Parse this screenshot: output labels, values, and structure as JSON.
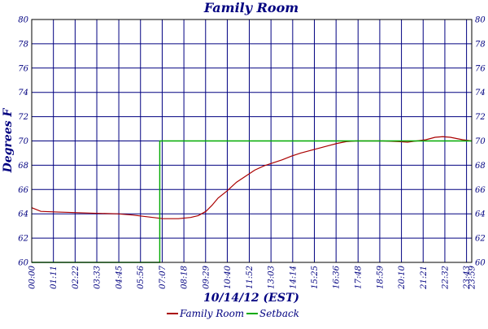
{
  "chart_data": {
    "type": "line",
    "title": "Family Room",
    "xlabel": "10/14/12 (EST)",
    "ylabel": "Degrees F",
    "ylim": [
      60,
      80
    ],
    "yticks": [
      60,
      62,
      64,
      66,
      68,
      70,
      72,
      74,
      76,
      78,
      80
    ],
    "xlim": [
      0,
      1440
    ],
    "xticks": [
      {
        "t": 0,
        "label": "00:00"
      },
      {
        "t": 71,
        "label": "01:11"
      },
      {
        "t": 142,
        "label": "02:22"
      },
      {
        "t": 213,
        "label": "03:33"
      },
      {
        "t": 285,
        "label": "04:45"
      },
      {
        "t": 356,
        "label": "05:56"
      },
      {
        "t": 427,
        "label": "07:07"
      },
      {
        "t": 498,
        "label": "08:18"
      },
      {
        "t": 569,
        "label": "09:29"
      },
      {
        "t": 640,
        "label": "10:40"
      },
      {
        "t": 712,
        "label": "11:52"
      },
      {
        "t": 783,
        "label": "13:03"
      },
      {
        "t": 854,
        "label": "14:14"
      },
      {
        "t": 925,
        "label": "15:25"
      },
      {
        "t": 996,
        "label": "16:36"
      },
      {
        "t": 1068,
        "label": "17:48"
      },
      {
        "t": 1139,
        "label": "18:59"
      },
      {
        "t": 1210,
        "label": "20:10"
      },
      {
        "t": 1281,
        "label": "21:21"
      },
      {
        "t": 1352,
        "label": "22:32"
      },
      {
        "t": 1423,
        "label": "23:43"
      },
      {
        "t": 1440,
        "label": "23:59"
      }
    ],
    "grid": true,
    "legend": "bottom-center",
    "series": [
      {
        "name": "Family Room",
        "color": "#aa0000",
        "points": [
          [
            0,
            64.5
          ],
          [
            30,
            64.2
          ],
          [
            80,
            64.15
          ],
          [
            140,
            64.1
          ],
          [
            200,
            64.05
          ],
          [
            280,
            64.0
          ],
          [
            330,
            63.9
          ],
          [
            380,
            63.75
          ],
          [
            430,
            63.6
          ],
          [
            480,
            63.6
          ],
          [
            520,
            63.7
          ],
          [
            545,
            63.85
          ],
          [
            570,
            64.2
          ],
          [
            590,
            64.7
          ],
          [
            610,
            65.3
          ],
          [
            640,
            65.9
          ],
          [
            670,
            66.6
          ],
          [
            700,
            67.1
          ],
          [
            730,
            67.6
          ],
          [
            760,
            67.95
          ],
          [
            790,
            68.2
          ],
          [
            820,
            68.45
          ],
          [
            850,
            68.75
          ],
          [
            880,
            69.0
          ],
          [
            910,
            69.2
          ],
          [
            940,
            69.4
          ],
          [
            970,
            69.6
          ],
          [
            1000,
            69.8
          ],
          [
            1030,
            69.95
          ],
          [
            1060,
            70.0
          ],
          [
            1100,
            70.0
          ],
          [
            1150,
            70.0
          ],
          [
            1200,
            69.95
          ],
          [
            1230,
            69.9
          ],
          [
            1260,
            70.0
          ],
          [
            1290,
            70.1
          ],
          [
            1320,
            70.3
          ],
          [
            1345,
            70.35
          ],
          [
            1370,
            70.3
          ],
          [
            1390,
            70.2
          ],
          [
            1410,
            70.1
          ],
          [
            1425,
            70.05
          ],
          [
            1440,
            70.0
          ]
        ]
      },
      {
        "name": "Setback",
        "color": "#00aa00",
        "points": [
          [
            0,
            60
          ],
          [
            419,
            60
          ],
          [
            419,
            70
          ],
          [
            1440,
            70
          ]
        ]
      }
    ]
  }
}
